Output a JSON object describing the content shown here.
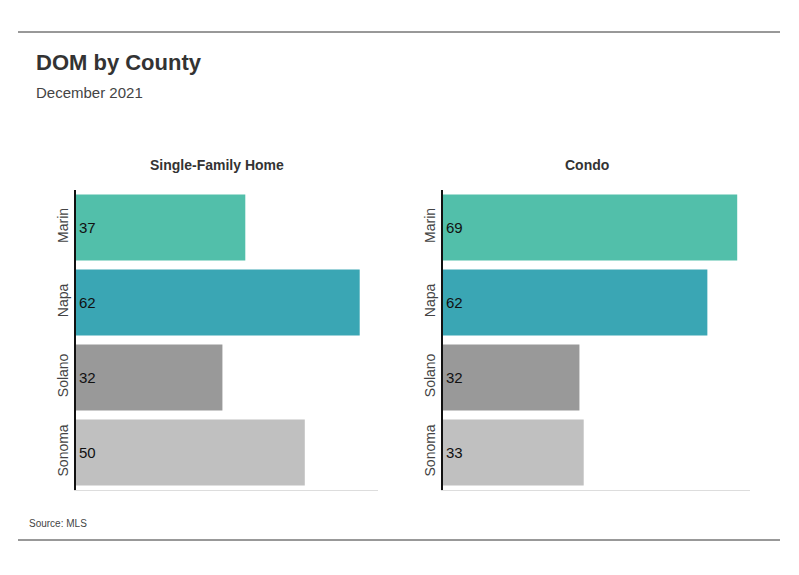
{
  "title": "DOM by County",
  "subtitle": "December 2021",
  "annotations": [
    "Source: MLS"
  ],
  "chart_data": [
    {
      "type": "bar",
      "title": "Single-Family Home",
      "orientation": "horizontal",
      "categories": [
        "Marin",
        "Napa",
        "Solano",
        "Sonoma"
      ],
      "values": [
        37,
        62,
        32,
        50
      ],
      "colors": [
        "#52bfaa",
        "#3aa6b4",
        "#999999",
        "#c0c0c0"
      ],
      "xlim": [
        0,
        66
      ],
      "tick_labels": "y",
      "data_labels": true,
      "grid": false
    },
    {
      "type": "bar",
      "title": "Condo",
      "orientation": "horizontal",
      "categories": [
        "Marin",
        "Napa",
        "Solano",
        "Sonoma"
      ],
      "values": [
        69,
        62,
        32,
        33
      ],
      "colors": [
        "#52bfaa",
        "#3aa6b4",
        "#999999",
        "#c0c0c0"
      ],
      "xlim": [
        0,
        72
      ],
      "tick_labels": "y",
      "data_labels": true,
      "grid": false
    }
  ]
}
